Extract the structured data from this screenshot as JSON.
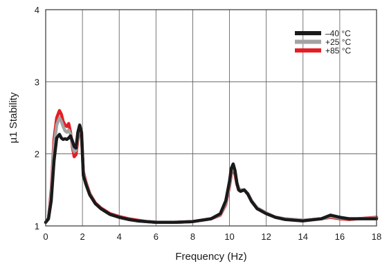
{
  "chart_data": {
    "type": "line",
    "title": "",
    "xlabel": "Frequency (Hz)",
    "ylabel": "µ1 Stability",
    "xlim": [
      0,
      18
    ],
    "ylim": [
      1,
      4
    ],
    "x_ticks": [
      0,
      2,
      4,
      6,
      8,
      10,
      12,
      14,
      16,
      18
    ],
    "y_ticks": [
      1,
      2,
      3,
      4
    ],
    "grid": true,
    "legend_position": "top-right",
    "series": [
      {
        "name": "+85 °C",
        "color": "#e31e24",
        "x": [
          0.0,
          0.15,
          0.3,
          0.45,
          0.6,
          0.75,
          0.85,
          0.95,
          1.05,
          1.15,
          1.25,
          1.35,
          1.45,
          1.55,
          1.65,
          1.75,
          1.85,
          1.95,
          2.05,
          2.2,
          2.4,
          2.7,
          3.0,
          3.5,
          4.0,
          4.5,
          5.0,
          5.5,
          6.0,
          7.0,
          8.0,
          9.0,
          9.5,
          9.8,
          10.0,
          10.1,
          10.2,
          10.3,
          10.4,
          10.5,
          10.6,
          10.8,
          11.0,
          11.2,
          11.5,
          12.0,
          12.5,
          13.0,
          14.0,
          15.0,
          15.5,
          16.0,
          16.5,
          17.0,
          18.0
        ],
        "y": [
          1.05,
          1.1,
          1.5,
          2.2,
          2.5,
          2.6,
          2.55,
          2.45,
          2.4,
          2.38,
          2.42,
          2.3,
          2.1,
          1.96,
          1.99,
          2.2,
          2.35,
          2.25,
          1.75,
          1.6,
          1.45,
          1.32,
          1.25,
          1.17,
          1.13,
          1.1,
          1.08,
          1.06,
          1.05,
          1.05,
          1.06,
          1.1,
          1.15,
          1.3,
          1.55,
          1.72,
          1.78,
          1.72,
          1.58,
          1.5,
          1.48,
          1.5,
          1.45,
          1.35,
          1.25,
          1.18,
          1.12,
          1.1,
          1.08,
          1.1,
          1.12,
          1.1,
          1.09,
          1.1,
          1.12
        ]
      },
      {
        "name": "+25 °C",
        "color": "#a3a3a3",
        "x": [
          0.0,
          0.15,
          0.3,
          0.45,
          0.6,
          0.75,
          0.85,
          0.95,
          1.05,
          1.15,
          1.25,
          1.35,
          1.45,
          1.55,
          1.65,
          1.75,
          1.85,
          1.95,
          2.05,
          2.2,
          2.4,
          2.7,
          3.0,
          3.5,
          4.0,
          4.5,
          5.0,
          5.5,
          6.0,
          7.0,
          8.0,
          9.0,
          9.5,
          9.8,
          10.0,
          10.1,
          10.2,
          10.3,
          10.4,
          10.5,
          10.6,
          10.8,
          11.0,
          11.2,
          11.5,
          12.0,
          12.5,
          13.0,
          14.0,
          15.0,
          15.5,
          16.0,
          16.5,
          17.0,
          18.0
        ],
        "y": [
          1.05,
          1.1,
          1.45,
          2.1,
          2.4,
          2.5,
          2.45,
          2.38,
          2.32,
          2.3,
          2.33,
          2.27,
          2.12,
          2.03,
          2.05,
          2.25,
          2.38,
          2.3,
          1.72,
          1.58,
          1.44,
          1.31,
          1.24,
          1.16,
          1.12,
          1.09,
          1.07,
          1.06,
          1.05,
          1.05,
          1.06,
          1.1,
          1.16,
          1.32,
          1.58,
          1.75,
          1.82,
          1.75,
          1.6,
          1.52,
          1.5,
          1.5,
          1.45,
          1.35,
          1.25,
          1.18,
          1.12,
          1.1,
          1.08,
          1.1,
          1.13,
          1.11,
          1.1,
          1.1,
          1.11
        ]
      },
      {
        "name": "–40 °C",
        "color": "#1a1a1a",
        "x": [
          0.0,
          0.15,
          0.3,
          0.45,
          0.6,
          0.75,
          0.85,
          0.95,
          1.05,
          1.15,
          1.25,
          1.35,
          1.45,
          1.55,
          1.65,
          1.75,
          1.85,
          1.95,
          2.05,
          2.2,
          2.4,
          2.7,
          3.0,
          3.5,
          4.0,
          4.5,
          5.0,
          5.5,
          6.0,
          7.0,
          8.0,
          9.0,
          9.5,
          9.8,
          10.0,
          10.1,
          10.2,
          10.3,
          10.4,
          10.5,
          10.6,
          10.8,
          11.0,
          11.2,
          11.5,
          12.0,
          12.5,
          13.0,
          14.0,
          15.0,
          15.5,
          16.0,
          16.5,
          17.0,
          18.0
        ],
        "y": [
          1.05,
          1.1,
          1.35,
          1.9,
          2.22,
          2.27,
          2.22,
          2.2,
          2.21,
          2.2,
          2.22,
          2.25,
          2.18,
          2.1,
          2.08,
          2.3,
          2.4,
          2.3,
          1.7,
          1.57,
          1.43,
          1.31,
          1.24,
          1.16,
          1.12,
          1.09,
          1.07,
          1.06,
          1.05,
          1.05,
          1.06,
          1.1,
          1.17,
          1.35,
          1.62,
          1.8,
          1.86,
          1.77,
          1.6,
          1.5,
          1.48,
          1.5,
          1.44,
          1.34,
          1.24,
          1.17,
          1.12,
          1.09,
          1.07,
          1.1,
          1.15,
          1.12,
          1.1,
          1.1,
          1.1
        ]
      }
    ]
  }
}
